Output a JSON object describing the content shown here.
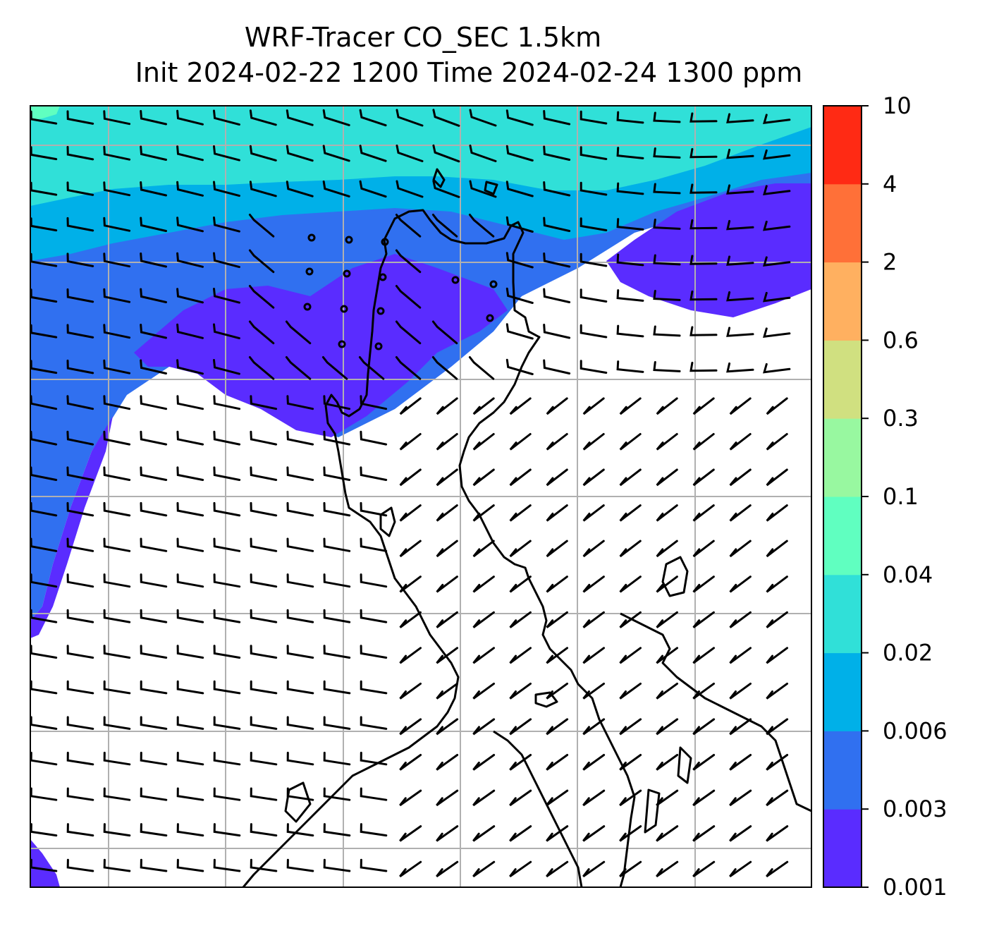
{
  "title": {
    "line1": "WRF-Tracer CO_SEC 1.5km",
    "line2": "Init 2024-02-22 1200 Time 2024-02-24 1300 ppm"
  },
  "colorbar": {
    "levels": [
      "0.001",
      "0.003",
      "0.006",
      "0.02",
      "0.04",
      "0.1",
      "0.3",
      "0.6",
      "2",
      "4",
      "10"
    ],
    "colors": [
      "#5a2cff",
      "#3070f0",
      "#00b0e8",
      "#30e0d8",
      "#60ffc0",
      "#98f8a0",
      "#d0e080",
      "#ffb060",
      "#ff7038",
      "#ff2a14"
    ]
  },
  "map": {
    "gridlines": true,
    "wind_barbs": true,
    "coastlines": true,
    "tracer_colors": {
      "level_0_001": "#5a2cff",
      "level_0_003": "#3070f0",
      "level_0_006": "#00b0e8",
      "level_0_02": "#30e0d8",
      "level_0_04": "#60ffc0"
    }
  }
}
